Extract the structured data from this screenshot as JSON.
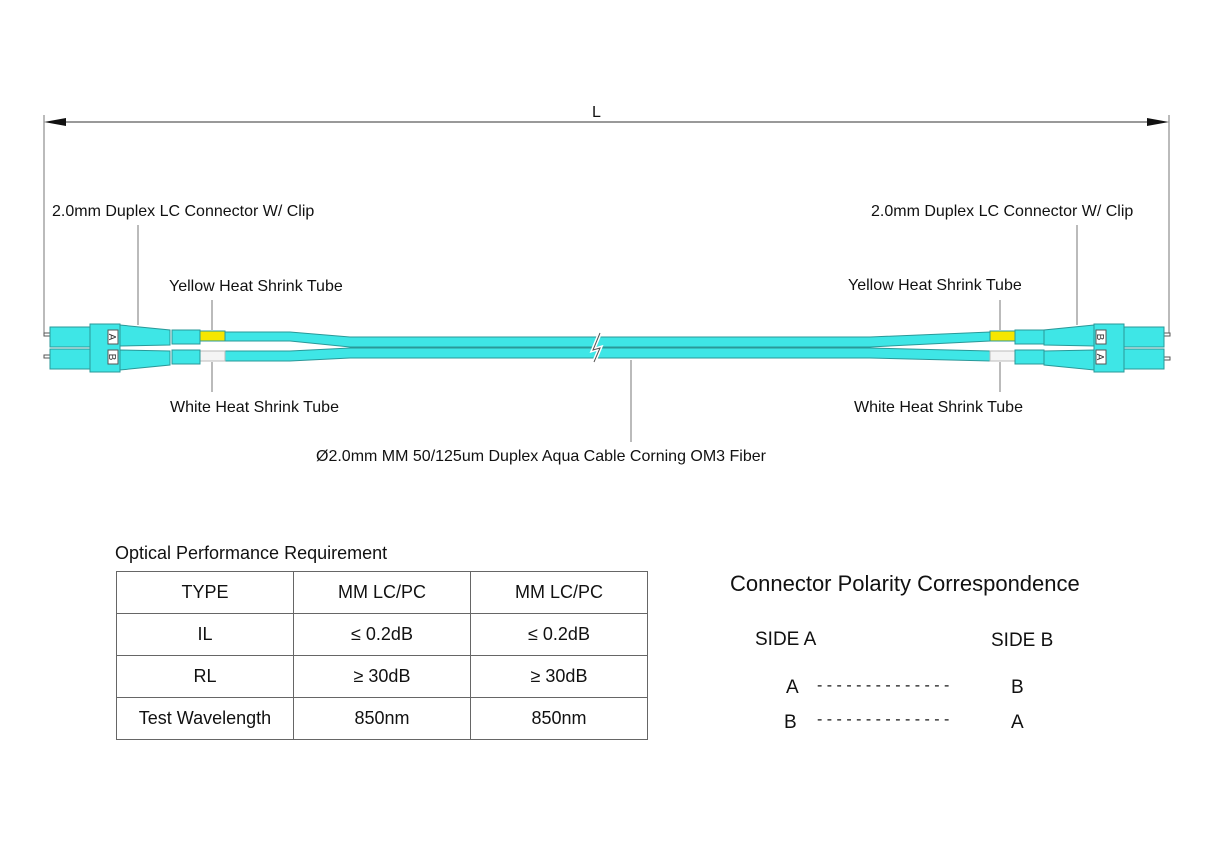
{
  "drawing": {
    "length_label": "L",
    "left_connector_label": "2.0mm Duplex LC Connector W/ Clip",
    "right_connector_label": "2.0mm Duplex LC Connector W/ Clip",
    "left_yellow_label": "Yellow Heat Shrink Tube",
    "right_yellow_label": "Yellow Heat Shrink Tube",
    "left_white_label": "White Heat Shrink Tube",
    "right_white_label": "White Heat Shrink Tube",
    "cable_label": "Ø2.0mm MM 50/125um Duplex Aqua Cable  Corning OM3 Fiber",
    "left_port_labels": [
      "A",
      "B"
    ],
    "right_port_labels": [
      "B",
      "A"
    ],
    "colors": {
      "aqua": "#3ee6e6",
      "outline": "#2a9898",
      "yellow": "#f5e600",
      "white": "#f4f4f4"
    }
  },
  "performance": {
    "title": "Optical Performance Requirement",
    "rows": [
      [
        "TYPE",
        "MM LC/PC",
        "MM LC/PC"
      ],
      [
        "IL",
        "≤ 0.2dB",
        "≤ 0.2dB"
      ],
      [
        "RL",
        "≥ 30dB",
        "≥ 30dB"
      ],
      [
        "Test Wavelength",
        "850nm",
        "850nm"
      ]
    ]
  },
  "polarity": {
    "title": "Connector Polarity Correspondence",
    "side_a": "SIDE A",
    "side_b": "SIDE B",
    "pairs": [
      {
        "from": "A",
        "dashes": "- - - - - - - - - - - - - -",
        "to": "B"
      },
      {
        "from": "B",
        "dashes": "- - - - - - - - - - - - - -",
        "to": "A"
      }
    ]
  }
}
